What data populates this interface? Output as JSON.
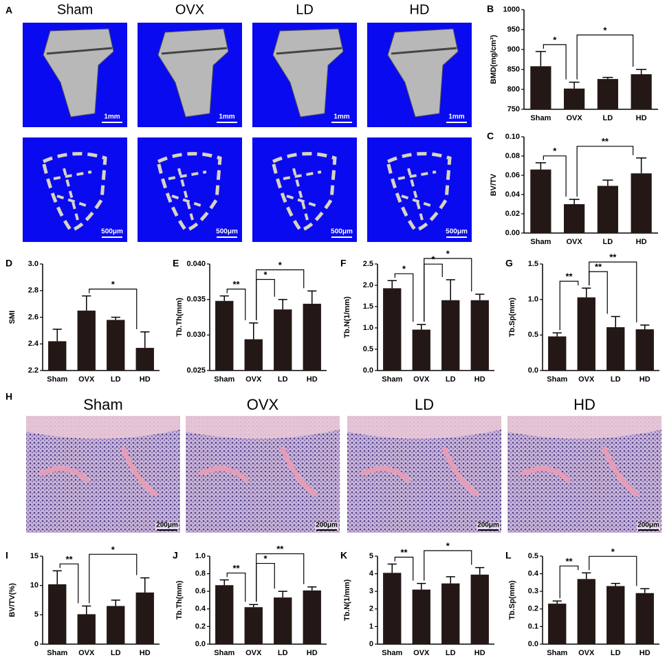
{
  "micro_ct": {
    "panel": "A",
    "groups": [
      "Sham",
      "OVX",
      "LD",
      "HD"
    ],
    "scale_top": "1mm",
    "scale_bottom": "500μm"
  },
  "histology": {
    "panel": "H",
    "groups": [
      "Sham",
      "OVX",
      "LD",
      "HD"
    ],
    "scale": "200μm"
  },
  "chart_data": [
    {
      "type": "bar",
      "panel": "B",
      "ylabel": "BMD(mg/cm³)",
      "categories": [
        "Sham",
        "OVX",
        "LD",
        "HD"
      ],
      "values": [
        858,
        802,
        826,
        838
      ],
      "errors": [
        37,
        16,
        4,
        12
      ],
      "color": "#231815",
      "ylim": [
        750,
        1000
      ],
      "yticks": [
        750,
        800,
        850,
        900,
        950,
        1000
      ],
      "annotations": [
        {
          "from": "Sham",
          "to": "OVX",
          "label": "*"
        },
        {
          "from": "OVX",
          "to": "HD",
          "label": "*"
        }
      ]
    },
    {
      "type": "bar",
      "panel": "C",
      "ylabel": "BV/TV",
      "categories": [
        "Sham",
        "OVX",
        "LD",
        "HD"
      ],
      "values": [
        0.066,
        0.03,
        0.049,
        0.062
      ],
      "errors": [
        0.007,
        0.005,
        0.006,
        0.016
      ],
      "color": "#231815",
      "ylim": [
        0,
        0.1
      ],
      "yticks": [
        {
          "value": 0,
          "label": "0.00"
        },
        {
          "value": 0.02,
          "label": "0.02"
        },
        {
          "value": 0.04,
          "label": "0.04"
        },
        {
          "value": 0.06,
          "label": "0.06"
        },
        {
          "value": 0.08,
          "label": "0.08"
        },
        {
          "value": 0.1,
          "label": "0.10"
        }
      ],
      "annotations": [
        {
          "from": "Sham",
          "to": "OVX",
          "label": "*"
        },
        {
          "from": "OVX",
          "to": "HD",
          "label": "**"
        }
      ]
    },
    {
      "type": "bar",
      "panel": "D",
      "ylabel": "SMI",
      "categories": [
        "Sham",
        "OVX",
        "LD",
        "HD"
      ],
      "values": [
        2.42,
        2.65,
        2.58,
        2.37
      ],
      "errors": [
        0.09,
        0.11,
        0.02,
        0.12
      ],
      "color": "#231815",
      "ylim": [
        2.2,
        3.0
      ],
      "yticks": [
        2.2,
        2.4,
        2.6,
        2.8,
        {
          "value": 3.0,
          "label": "3.0"
        }
      ],
      "annotations": [
        {
          "from": "OVX",
          "to": "HD",
          "label": "*"
        }
      ]
    },
    {
      "type": "bar",
      "panel": "E",
      "ylabel": "Tb.Th(mm)",
      "categories": [
        "Sham",
        "OVX",
        "LD",
        "HD"
      ],
      "values": [
        0.0348,
        0.0294,
        0.0336,
        0.0344
      ],
      "errors": [
        0.0007,
        0.0023,
        0.0014,
        0.0018
      ],
      "color": "#231815",
      "ylim": [
        0.025,
        0.04
      ],
      "yticks": [
        0.025,
        {
          "value": 0.03,
          "label": "0.030"
        },
        0.035,
        {
          "value": 0.04,
          "label": "0.040"
        }
      ],
      "annotations": [
        {
          "from": "Sham",
          "to": "OVX",
          "label": "**"
        },
        {
          "from": "OVX",
          "to": "LD",
          "label": "*"
        },
        {
          "from": "OVX",
          "to": "HD",
          "label": "*"
        }
      ]
    },
    {
      "type": "bar",
      "panel": "F",
      "ylabel": "Tb.N(1/mm)",
      "categories": [
        "Sham",
        "OVX",
        "LD",
        "HD"
      ],
      "values": [
        1.93,
        0.96,
        1.65,
        1.65
      ],
      "errors": [
        0.18,
        0.12,
        0.48,
        0.14
      ],
      "color": "#231815",
      "ylim": [
        0,
        2.5
      ],
      "yticks": [
        {
          "value": 0,
          "label": "0.0"
        },
        0.5,
        {
          "value": 1,
          "label": "1.0"
        },
        1.5,
        {
          "value": 2,
          "label": "2.0"
        },
        2.5
      ],
      "annotations": [
        {
          "from": "Sham",
          "to": "OVX",
          "label": "*"
        },
        {
          "from": "OVX",
          "to": "LD",
          "label": "*"
        },
        {
          "from": "OVX",
          "to": "HD",
          "label": "*"
        }
      ]
    },
    {
      "type": "bar",
      "panel": "G",
      "ylabel": "Tb.Sp(mm)",
      "categories": [
        "Sham",
        "OVX",
        "LD",
        "HD"
      ],
      "values": [
        0.48,
        1.03,
        0.61,
        0.58
      ],
      "errors": [
        0.05,
        0.13,
        0.15,
        0.06
      ],
      "color": "#231815",
      "ylim": [
        0,
        1.5
      ],
      "yticks": [
        {
          "value": 0,
          "label": "0.0"
        },
        0.5,
        {
          "value": 1,
          "label": "1.0"
        },
        1.5
      ],
      "annotations": [
        {
          "from": "Sham",
          "to": "OVX",
          "label": "**"
        },
        {
          "from": "OVX",
          "to": "LD",
          "label": "**"
        },
        {
          "from": "OVX",
          "to": "HD",
          "label": "**"
        }
      ]
    },
    {
      "type": "bar",
      "panel": "I",
      "ylabel": "BV/TV(%)",
      "categories": [
        "Sham",
        "OVX",
        "LD",
        "HD"
      ],
      "values": [
        10.2,
        5.1,
        6.5,
        8.8
      ],
      "errors": [
        2.3,
        1.4,
        1.0,
        2.5
      ],
      "color": "#231815",
      "ylim": [
        0,
        15
      ],
      "yticks": [
        0,
        5,
        10,
        15
      ],
      "annotations": [
        {
          "from": "Sham",
          "to": "OVX",
          "label": "**"
        },
        {
          "from": "OVX",
          "to": "HD",
          "label": "*"
        }
      ]
    },
    {
      "type": "bar",
      "panel": "J",
      "ylabel": "Tb.Th(mm)",
      "categories": [
        "Sham",
        "OVX",
        "LD",
        "HD"
      ],
      "values": [
        0.67,
        0.42,
        0.53,
        0.61
      ],
      "errors": [
        0.06,
        0.03,
        0.07,
        0.04
      ],
      "color": "#231815",
      "ylim": [
        0,
        1.0
      ],
      "yticks": [
        {
          "value": 0,
          "label": "0.0"
        },
        0.2,
        0.4,
        0.6,
        0.8,
        {
          "value": 1,
          "label": "1.0"
        }
      ],
      "annotations": [
        {
          "from": "Sham",
          "to": "OVX",
          "label": "**"
        },
        {
          "from": "OVX",
          "to": "LD",
          "label": "*"
        },
        {
          "from": "OVX",
          "to": "HD",
          "label": "**"
        }
      ]
    },
    {
      "type": "bar",
      "panel": "K",
      "ylabel": "Tb.N(1/mm)",
      "categories": [
        "Sham",
        "OVX",
        "LD",
        "HD"
      ],
      "values": [
        4.05,
        3.1,
        3.45,
        3.95
      ],
      "errors": [
        0.5,
        0.35,
        0.38,
        0.4
      ],
      "color": "#231815",
      "ylim": [
        0,
        5
      ],
      "yticks": [
        0,
        1,
        2,
        3,
        4,
        5
      ],
      "annotations": [
        {
          "from": "Sham",
          "to": "OVX",
          "label": "**"
        },
        {
          "from": "OVX",
          "to": "HD",
          "label": "*"
        }
      ]
    },
    {
      "type": "bar",
      "panel": "L",
      "ylabel": "Tb.Sp(mm)",
      "categories": [
        "Sham",
        "OVX",
        "LD",
        "HD"
      ],
      "values": [
        0.23,
        0.37,
        0.33,
        0.29
      ],
      "errors": [
        0.015,
        0.035,
        0.015,
        0.025
      ],
      "color": "#231815",
      "ylim": [
        0,
        0.5
      ],
      "yticks": [
        {
          "value": 0,
          "label": "0.0"
        },
        0.1,
        0.2,
        0.3,
        0.4,
        0.5
      ],
      "annotations": [
        {
          "from": "Sham",
          "to": "OVX",
          "label": "**"
        },
        {
          "from": "OVX",
          "to": "HD",
          "label": "*"
        }
      ]
    }
  ]
}
